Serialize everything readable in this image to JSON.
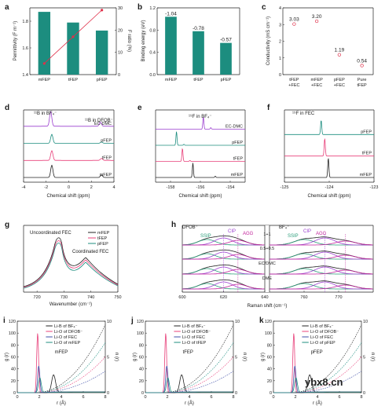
{
  "colors": {
    "teal": "#1c8d7f",
    "pink": "#e8407a",
    "purple": "#9b3fcf",
    "green_ssip": "#2a9d7a",
    "magenta": "#c2239c",
    "blue": "#3f4fa8",
    "black": "#222222",
    "grey": "#8a8a8a",
    "red": "#e0304a"
  },
  "watermark": "ybx8.cn",
  "chart_data": [
    {
      "id": "a",
      "panel_label": "a",
      "type": "bar",
      "categories": [
        "mFEP",
        "tFEP",
        "pFEP"
      ],
      "values": [
        1.87,
        1.79,
        1.73
      ],
      "ylabel": "Permittivity (F m⁻¹)",
      "ylim": [
        1.4,
        1.9
      ],
      "yticks": [
        "1.4",
        "1.6",
        "1.8"
      ],
      "secondary": {
        "ylabel": "F ratio (%)",
        "ylim": [
          0,
          30
        ],
        "yticks": [
          "0",
          "10",
          "20",
          "30"
        ],
        "values": [
          5,
          17,
          29
        ]
      }
    },
    {
      "id": "b",
      "panel_label": "b",
      "type": "bar",
      "categories": [
        "mFEP",
        "tFEP",
        "pFEP"
      ],
      "values": [
        -1.04,
        -0.78,
        -0.57
      ],
      "data_labels": [
        "-1.04",
        "-0.78",
        "-0.57"
      ],
      "ylabel": "Binding energy (eV)",
      "ylim": [
        0,
        1.2
      ],
      "yticks": [
        "0.0",
        "0.4",
        "0.8",
        "1.2"
      ]
    },
    {
      "id": "c",
      "panel_label": "c",
      "type": "scatter",
      "categories": [
        "tFEP\n+FEC",
        "mFEP\n+FEC",
        "pFEP\n+FEC",
        "Pure\ntFEP"
      ],
      "values": [
        3.03,
        3.2,
        1.19,
        0.54
      ],
      "data_labels": [
        "3.03",
        "3.20",
        "1.19",
        "0.54"
      ],
      "ylabel": "Conductivity (mS cm⁻¹)",
      "ylim": [
        0,
        4
      ],
      "yticks": [
        "0",
        "1",
        "2",
        "3",
        "4"
      ]
    },
    {
      "id": "d",
      "panel_label": "d",
      "type": "line",
      "xlabel": "Chemical shift (ppm)",
      "xlim": [
        -4,
        4
      ],
      "xticks": [
        "-4",
        "-2",
        "0",
        "2",
        "4"
      ],
      "annotations": [
        "¹¹B in BF₄⁻",
        "¹¹B in DFOB⁻"
      ],
      "series": [
        {
          "name": "EC-DMC",
          "color": "#9b3fcf",
          "peaks": [
            {
              "x": -1.6,
              "h": 0.9
            },
            {
              "x": 2.8,
              "h": 0.25
            }
          ]
        },
        {
          "name": "pFEP",
          "color": "#1c8d7f",
          "peaks": [
            {
              "x": -1.5,
              "h": 0.55
            },
            {
              "x": 2.9,
              "h": 0.08
            }
          ]
        },
        {
          "name": "tFEP",
          "color": "#e8407a",
          "peaks": [
            {
              "x": -1.5,
              "h": 0.6
            },
            {
              "x": 2.9,
              "h": 0.12
            }
          ]
        },
        {
          "name": "mFEP",
          "color": "#222222",
          "peaks": [
            {
              "x": -1.5,
              "h": 0.75
            },
            {
              "x": 2.9,
              "h": 0.15
            }
          ]
        }
      ]
    },
    {
      "id": "e",
      "panel_label": "e",
      "type": "line",
      "xlabel": "Chemical shift (ppm)",
      "xlim": [
        -159,
        -153
      ],
      "xticks": [
        "-158",
        "-156",
        "-154"
      ],
      "annotations": [
        "¹⁹F in BF₄⁻"
      ],
      "series": [
        {
          "name": "EC-DMC",
          "color": "#9b3fcf",
          "peaks": [
            {
              "x": -155.8,
              "h": 0.8
            },
            {
              "x": -155.3,
              "h": 0.1
            }
          ]
        },
        {
          "name": "pFEP",
          "color": "#1c8d7f",
          "peaks": [
            {
              "x": -157.6,
              "h": 0.9
            },
            {
              "x": -157.1,
              "h": 0.06
            }
          ]
        },
        {
          "name": "tFEP",
          "color": "#e8407a",
          "peaks": [
            {
              "x": -157.2,
              "h": 0.85
            },
            {
              "x": -156.7,
              "h": 0.06
            }
          ]
        },
        {
          "name": "mFEP",
          "color": "#222222",
          "peaks": [
            {
              "x": -156.5,
              "h": 0.95
            },
            {
              "x": -155.0,
              "h": 0.08
            }
          ]
        }
      ]
    },
    {
      "id": "f",
      "panel_label": "f",
      "type": "line",
      "xlabel": "Chemical shift (ppm)",
      "xlim": [
        -125,
        -123
      ],
      "xticks": [
        "-125",
        "-124",
        "-123"
      ],
      "annotations": [
        "¹⁹F in FEC"
      ],
      "series": [
        {
          "name": "pFEP",
          "color": "#1c8d7f",
          "peaks": [
            {
              "x": -124.18,
              "h": 0.7
            }
          ]
        },
        {
          "name": "tFEP",
          "color": "#e8407a",
          "peaks": [
            {
              "x": -124.1,
              "h": 0.85
            }
          ]
        },
        {
          "name": "mFEP",
          "color": "#222222",
          "peaks": [
            {
              "x": -124.02,
              "h": 0.95
            }
          ]
        }
      ]
    },
    {
      "id": "g",
      "panel_label": "g",
      "type": "line",
      "xlabel": "Wavenumber (cm⁻¹)",
      "xlim": [
        715,
        750
      ],
      "xticks": [
        "720",
        "730",
        "740",
        "750"
      ],
      "annotations": [
        "Uncoordinated FEC",
        "Coordinated FEC"
      ],
      "legend": "top-right",
      "series": [
        {
          "name": "mFEP",
          "color": "#222222"
        },
        {
          "name": "tFEP",
          "color": "#e8407a"
        },
        {
          "name": "pFEP",
          "color": "#1c8d7f"
        }
      ]
    },
    {
      "id": "h",
      "panel_label": "h",
      "type": "line",
      "xlabel": "Raman shift (cm⁻¹)",
      "left": {
        "title": "DFOB⁻",
        "xlim": [
          600,
          640
        ],
        "xticks": [
          "600",
          "620",
          "640"
        ]
      },
      "right": {
        "title": "BF₄⁻",
        "xlim": [
          750,
          780
        ],
        "xticks": [
          "760",
          "770"
        ]
      },
      "species": [
        "SSIP",
        "CIP",
        "AGG"
      ],
      "rows": [
        "1+1",
        "0.5+0.5",
        "EC/DMC",
        "DME"
      ]
    },
    {
      "id": "i",
      "panel_label": "i",
      "type": "line",
      "subtitle": "mFEP",
      "xlabel": "r (Å)",
      "ylabel": "g (r)",
      "ylabel2": "n (r)",
      "xlim": [
        0,
        8
      ],
      "xticks": [
        "0",
        "2",
        "4",
        "6",
        "8"
      ],
      "ylim": [
        0,
        120
      ],
      "yticks": [
        "0",
        "20",
        "40",
        "60",
        "80",
        "100",
        "120"
      ],
      "ylim2": [
        0,
        10
      ],
      "yticks2": [
        "0",
        "5",
        "10"
      ],
      "series": [
        {
          "name": "Li-B of BF₄⁻",
          "color": "#222222"
        },
        {
          "name": "Li-O of DFOB⁻",
          "color": "#e8407a"
        },
        {
          "name": "Li-O of FEC",
          "color": "#3f4fa8"
        },
        {
          "name": "Li-O of mFEP",
          "color": "#1c8d7f"
        }
      ]
    },
    {
      "id": "j",
      "panel_label": "j",
      "type": "line",
      "subtitle": "tFEP",
      "xlabel": "r (Å)",
      "ylabel": "g (r)",
      "ylabel2": "n (r)",
      "xlim": [
        0,
        8
      ],
      "xticks": [
        "0",
        "2",
        "4",
        "6",
        "8"
      ],
      "ylim": [
        0,
        120
      ],
      "yticks": [
        "0",
        "20",
        "40",
        "60",
        "80",
        "100",
        "120"
      ],
      "ylim2": [
        0,
        10
      ],
      "yticks2": [
        "0",
        "5",
        "10"
      ],
      "series": [
        {
          "name": "Li-B of BF₄⁻",
          "color": "#222222"
        },
        {
          "name": "Li-O of DFOB⁻",
          "color": "#e8407a"
        },
        {
          "name": "Li-O of FEC",
          "color": "#3f4fa8"
        },
        {
          "name": "Li-O of tFEP",
          "color": "#1c8d7f"
        }
      ]
    },
    {
      "id": "k",
      "panel_label": "k",
      "type": "line",
      "subtitle": "pFEP",
      "xlabel": "r (Å)",
      "ylabel": "g (r)",
      "ylabel2": "n (r)",
      "xlim": [
        0,
        8
      ],
      "xticks": [
        "0",
        "2",
        "4",
        "6",
        "8"
      ],
      "ylim": [
        0,
        120
      ],
      "yticks": [
        "0",
        "20",
        "40",
        "60",
        "80",
        "100",
        "120"
      ],
      "ylim2": [
        0,
        10
      ],
      "yticks2": [
        "0",
        "5",
        "10"
      ],
      "series": [
        {
          "name": "Li-B of BF₄⁻",
          "color": "#222222"
        },
        {
          "name": "Li-O of DFOB⁻",
          "color": "#e8407a"
        },
        {
          "name": "Li-O of FEC",
          "color": "#3f4fa8"
        },
        {
          "name": "Li-O of pFEP",
          "color": "#1c8d7f"
        }
      ]
    }
  ]
}
